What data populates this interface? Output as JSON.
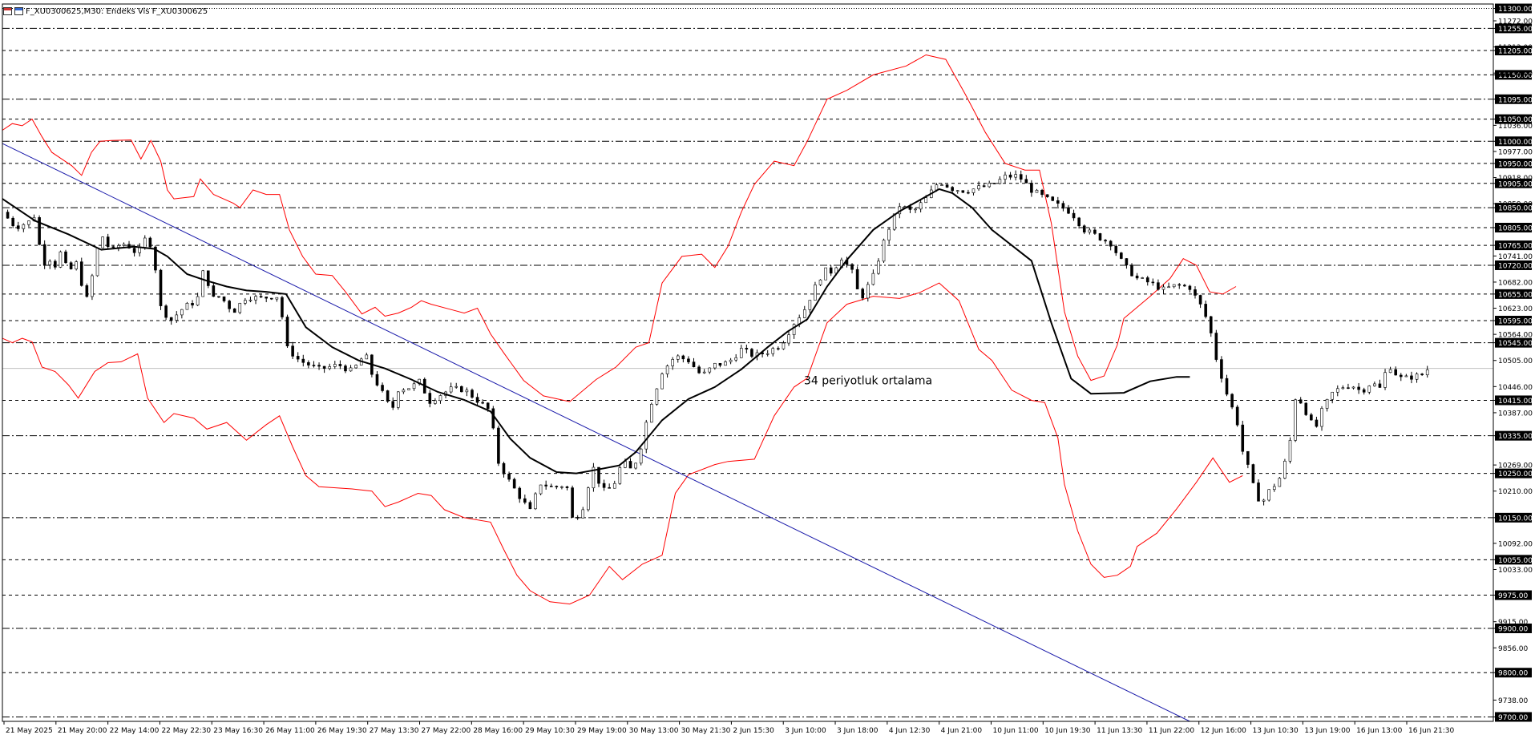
{
  "window": {
    "title": "F_XU0300625,M30: Endeks Vis F_XU0300625"
  },
  "colors": {
    "band": "#ff0000",
    "trendline": "#1a1aaa",
    "sma": "#000000",
    "candle": "#000000",
    "grid": "#000000",
    "price_tag_bg": "#000000",
    "price_tag_text": "#ffffff"
  },
  "chart_data": {
    "type": "candlestick",
    "timeframe": "M30",
    "y_range": [
      9690,
      11310
    ],
    "x_tick_labels": [
      "21 May 2025",
      "21 May 20:00",
      "22 May 14:00",
      "22 May 22:30",
      "23 May 16:30",
      "26 May 11:00",
      "26 May 19:30",
      "27 May 13:30",
      "27 May 22:00",
      "28 May 16:00",
      "29 May 10:30",
      "29 May 19:00",
      "30 May 13:00",
      "30 May 21:30",
      "2 Jun 15:30",
      "3 Jun 10:00",
      "3 Jun 18:00",
      "4 Jun 12:30",
      "4 Jun 21:00",
      "10 Jun 11:00",
      "10 Jun 19:30",
      "11 Jun 13:30",
      "11 Jun 22:00",
      "12 Jun 16:00",
      "13 Jun 10:30",
      "13 Jun 19:00",
      "16 Jun 13:00",
      "16 Jun 21:30"
    ],
    "y_axis_labels": [
      11300,
      11272,
      11255,
      11213,
      11205,
      11150,
      11154,
      11095,
      11050,
      11036,
      11000,
      10977,
      10950,
      10918,
      10905,
      10859,
      10850,
      10805,
      10765,
      10741,
      10720,
      10682,
      10655,
      10623,
      10595,
      10564,
      10545,
      10505,
      10446,
      10415,
      10387,
      10335,
      10269,
      10250,
      10210,
      10150,
      10092,
      10055,
      10033,
      9975,
      9915,
      9900,
      9856,
      9800,
      9738,
      9700
    ],
    "price_levels": [
      {
        "value": 11300,
        "style": "dotted"
      },
      {
        "value": 11255,
        "style": "dashdot"
      },
      {
        "value": 11205,
        "style": "dashed"
      },
      {
        "value": 11150,
        "style": "dashed"
      },
      {
        "value": 11095,
        "style": "dashdot"
      },
      {
        "value": 11050,
        "style": "dashed"
      },
      {
        "value": 11000,
        "style": "dashdot"
      },
      {
        "value": 10950,
        "style": "dashed"
      },
      {
        "value": 10905,
        "style": "dashed"
      },
      {
        "value": 10850,
        "style": "dashdot"
      },
      {
        "value": 10805,
        "style": "dashed"
      },
      {
        "value": 10765,
        "style": "dashed"
      },
      {
        "value": 10720,
        "style": "dashdot"
      },
      {
        "value": 10655,
        "style": "dashed"
      },
      {
        "value": 10595,
        "style": "dashed"
      },
      {
        "value": 10545,
        "style": "dashdot"
      },
      {
        "value": 10415,
        "style": "dashed"
      },
      {
        "value": 10335,
        "style": "dashdot"
      },
      {
        "value": 10250,
        "style": "dashed"
      },
      {
        "value": 10150,
        "style": "dashdot"
      },
      {
        "value": 10055,
        "style": "dashed"
      },
      {
        "value": 9975,
        "style": "dashed"
      },
      {
        "value": 9900,
        "style": "dashdot"
      },
      {
        "value": 9800,
        "style": "dashed"
      },
      {
        "value": 9700,
        "style": "dashdot"
      }
    ],
    "current_price": 10487,
    "annotation": {
      "text": "34 periyotluk ortalama",
      "bar": 1215,
      "price": 10451
    },
    "trendline": {
      "start": {
        "bar": 0,
        "price": 10995
      },
      "end": {
        "bar": 1800,
        "price": 9690
      }
    },
    "sma_path": [
      [
        0,
        10870
      ],
      [
        50,
        10820
      ],
      [
        100,
        10790
      ],
      [
        150,
        10755
      ],
      [
        200,
        10762
      ],
      [
        230,
        10757
      ],
      [
        250,
        10740
      ],
      [
        280,
        10700
      ],
      [
        310,
        10685
      ],
      [
        340,
        10672
      ],
      [
        370,
        10663
      ],
      [
        400,
        10660
      ],
      [
        430,
        10655
      ],
      [
        460,
        10580
      ],
      [
        500,
        10535
      ],
      [
        540,
        10505
      ],
      [
        580,
        10487
      ],
      [
        620,
        10462
      ],
      [
        660,
        10434
      ],
      [
        700,
        10416
      ],
      [
        740,
        10390
      ],
      [
        770,
        10328
      ],
      [
        800,
        10285
      ],
      [
        840,
        10253
      ],
      [
        870,
        10250
      ],
      [
        900,
        10258
      ],
      [
        935,
        10268
      ],
      [
        960,
        10298
      ],
      [
        1000,
        10370
      ],
      [
        1040,
        10418
      ],
      [
        1080,
        10445
      ],
      [
        1120,
        10485
      ],
      [
        1160,
        10535
      ],
      [
        1190,
        10570
      ],
      [
        1220,
        10598
      ],
      [
        1250,
        10672
      ],
      [
        1280,
        10732
      ],
      [
        1320,
        10800
      ],
      [
        1360,
        10842
      ],
      [
        1400,
        10875
      ],
      [
        1420,
        10892
      ],
      [
        1440,
        10883
      ],
      [
        1470,
        10850
      ],
      [
        1500,
        10800
      ],
      [
        1530,
        10765
      ],
      [
        1560,
        10730
      ],
      [
        1590,
        10590
      ],
      [
        1620,
        10464
      ],
      [
        1650,
        10430
      ],
      [
        1700,
        10432
      ],
      [
        1740,
        10458
      ],
      [
        1780,
        10468
      ],
      [
        1800,
        10468
      ]
    ],
    "upper_band_path": [
      [
        0,
        11025
      ],
      [
        15,
        11040
      ],
      [
        30,
        11035
      ],
      [
        45,
        11050
      ],
      [
        60,
        11010
      ],
      [
        75,
        10975
      ],
      [
        90,
        10960
      ],
      [
        105,
        10945
      ],
      [
        120,
        10923
      ],
      [
        135,
        10975
      ],
      [
        148,
        11000
      ],
      [
        165,
        11002
      ],
      [
        195,
        11003
      ],
      [
        210,
        10960
      ],
      [
        225,
        11002
      ],
      [
        240,
        10955
      ],
      [
        250,
        10890
      ],
      [
        260,
        10870
      ],
      [
        290,
        10875
      ],
      [
        300,
        10915
      ],
      [
        320,
        10880
      ],
      [
        350,
        10860
      ],
      [
        360,
        10850
      ],
      [
        380,
        10890
      ],
      [
        400,
        10880
      ],
      [
        420,
        10880
      ],
      [
        435,
        10800
      ],
      [
        455,
        10740
      ],
      [
        475,
        10700
      ],
      [
        500,
        10697
      ],
      [
        520,
        10660
      ],
      [
        545,
        10610
      ],
      [
        565,
        10625
      ],
      [
        580,
        10605
      ],
      [
        600,
        10612
      ],
      [
        620,
        10625
      ],
      [
        635,
        10640
      ],
      [
        650,
        10632
      ],
      [
        680,
        10620
      ],
      [
        700,
        10612
      ],
      [
        720,
        10623
      ],
      [
        740,
        10565
      ],
      [
        760,
        10522
      ],
      [
        790,
        10460
      ],
      [
        820,
        10425
      ],
      [
        860,
        10412
      ],
      [
        900,
        10462
      ],
      [
        930,
        10490
      ],
      [
        960,
        10535
      ],
      [
        980,
        10545
      ],
      [
        1000,
        10680
      ],
      [
        1030,
        10740
      ],
      [
        1060,
        10745
      ],
      [
        1080,
        10715
      ],
      [
        1100,
        10763
      ],
      [
        1120,
        10840
      ],
      [
        1140,
        10903
      ],
      [
        1170,
        10955
      ],
      [
        1200,
        10945
      ],
      [
        1220,
        11000
      ],
      [
        1250,
        11095
      ],
      [
        1280,
        11115
      ],
      [
        1320,
        11150
      ],
      [
        1370,
        11170
      ],
      [
        1400,
        11195
      ],
      [
        1430,
        11185
      ],
      [
        1460,
        11105
      ],
      [
        1490,
        11020
      ],
      [
        1520,
        10950
      ],
      [
        1550,
        10935
      ],
      [
        1572,
        10935
      ],
      [
        1590,
        10815
      ],
      [
        1610,
        10615
      ],
      [
        1630,
        10515
      ],
      [
        1650,
        10460
      ],
      [
        1670,
        10470
      ],
      [
        1690,
        10540
      ],
      [
        1700,
        10600
      ],
      [
        1740,
        10650
      ],
      [
        1770,
        10690
      ],
      [
        1790,
        10735
      ],
      [
        1810,
        10720
      ],
      [
        1830,
        10660
      ],
      [
        1850,
        10655
      ],
      [
        1870,
        10672
      ]
    ],
    "lower_band_path": [
      [
        0,
        10555
      ],
      [
        15,
        10545
      ],
      [
        30,
        10555
      ],
      [
        45,
        10547
      ],
      [
        60,
        10490
      ],
      [
        80,
        10480
      ],
      [
        100,
        10450
      ],
      [
        115,
        10420
      ],
      [
        140,
        10480
      ],
      [
        160,
        10500
      ],
      [
        180,
        10502
      ],
      [
        205,
        10520
      ],
      [
        220,
        10420
      ],
      [
        245,
        10365
      ],
      [
        260,
        10385
      ],
      [
        290,
        10375
      ],
      [
        310,
        10350
      ],
      [
        340,
        10365
      ],
      [
        370,
        10325
      ],
      [
        400,
        10360
      ],
      [
        420,
        10380
      ],
      [
        440,
        10310
      ],
      [
        460,
        10245
      ],
      [
        480,
        10220
      ],
      [
        530,
        10215
      ],
      [
        560,
        10210
      ],
      [
        580,
        10175
      ],
      [
        600,
        10185
      ],
      [
        630,
        10205
      ],
      [
        650,
        10200
      ],
      [
        670,
        10168
      ],
      [
        700,
        10150
      ],
      [
        740,
        10140
      ],
      [
        760,
        10078
      ],
      [
        780,
        10020
      ],
      [
        800,
        9985
      ],
      [
        830,
        9960
      ],
      [
        860,
        9955
      ],
      [
        890,
        9975
      ],
      [
        920,
        10040
      ],
      [
        940,
        10010
      ],
      [
        970,
        10045
      ],
      [
        1000,
        10065
      ],
      [
        1020,
        10205
      ],
      [
        1040,
        10247
      ],
      [
        1080,
        10270
      ],
      [
        1100,
        10277
      ],
      [
        1140,
        10282
      ],
      [
        1170,
        10380
      ],
      [
        1200,
        10445
      ],
      [
        1220,
        10465
      ],
      [
        1250,
        10590
      ],
      [
        1280,
        10632
      ],
      [
        1320,
        10650
      ],
      [
        1360,
        10645
      ],
      [
        1390,
        10658
      ],
      [
        1420,
        10680
      ],
      [
        1450,
        10640
      ],
      [
        1480,
        10530
      ],
      [
        1500,
        10505
      ],
      [
        1530,
        10438
      ],
      [
        1560,
        10415
      ],
      [
        1580,
        10410
      ],
      [
        1600,
        10330
      ],
      [
        1610,
        10225
      ],
      [
        1630,
        10120
      ],
      [
        1650,
        10045
      ],
      [
        1670,
        10015
      ],
      [
        1690,
        10020
      ],
      [
        1710,
        10040
      ],
      [
        1720,
        10085
      ],
      [
        1750,
        10115
      ],
      [
        1780,
        10170
      ],
      [
        1810,
        10230
      ],
      [
        1835,
        10285
      ],
      [
        1860,
        10230
      ],
      [
        1880,
        10245
      ]
    ],
    "price_path": [
      [
        0,
        10840
      ],
      [
        20,
        10806
      ],
      [
        40,
        10818
      ],
      [
        50,
        10835
      ],
      [
        60,
        10720
      ],
      [
        70,
        10738
      ],
      [
        80,
        10720
      ],
      [
        90,
        10755
      ],
      [
        100,
        10695
      ],
      [
        110,
        10735
      ],
      [
        120,
        10680
      ],
      [
        130,
        10635
      ],
      [
        140,
        10735
      ],
      [
        150,
        10790
      ],
      [
        165,
        10750
      ],
      [
        180,
        10770
      ],
      [
        190,
        10765
      ],
      [
        205,
        10745
      ],
      [
        220,
        10790
      ],
      [
        230,
        10735
      ],
      [
        240,
        10625
      ],
      [
        255,
        10595
      ],
      [
        275,
        10625
      ],
      [
        295,
        10640
      ],
      [
        305,
        10710
      ],
      [
        320,
        10645
      ],
      [
        330,
        10650
      ],
      [
        350,
        10615
      ],
      [
        370,
        10650
      ],
      [
        390,
        10645
      ],
      [
        410,
        10650
      ],
      [
        420,
        10650
      ],
      [
        430,
        10535
      ],
      [
        450,
        10505
      ],
      [
        480,
        10485
      ],
      [
        510,
        10495
      ],
      [
        530,
        10480
      ],
      [
        550,
        10520
      ],
      [
        560,
        10475
      ],
      [
        580,
        10420
      ],
      [
        590,
        10390
      ],
      [
        600,
        10440
      ],
      [
        620,
        10445
      ],
      [
        635,
        10460
      ],
      [
        645,
        10410
      ],
      [
        660,
        10425
      ],
      [
        680,
        10440
      ],
      [
        700,
        10440
      ],
      [
        720,
        10415
      ],
      [
        740,
        10390
      ],
      [
        750,
        10280
      ],
      [
        770,
        10228
      ],
      [
        790,
        10185
      ],
      [
        800,
        10165
      ],
      [
        815,
        10228
      ],
      [
        835,
        10218
      ],
      [
        855,
        10225
      ],
      [
        865,
        10140
      ],
      [
        880,
        10175
      ],
      [
        895,
        10265
      ],
      [
        910,
        10210
      ],
      [
        925,
        10218
      ],
      [
        940,
        10277
      ],
      [
        955,
        10255
      ],
      [
        970,
        10320
      ],
      [
        980,
        10395
      ],
      [
        1000,
        10480
      ],
      [
        1020,
        10515
      ],
      [
        1040,
        10505
      ],
      [
        1060,
        10470
      ],
      [
        1080,
        10495
      ],
      [
        1100,
        10500
      ],
      [
        1120,
        10530
      ],
      [
        1140,
        10515
      ],
      [
        1160,
        10525
      ],
      [
        1180,
        10540
      ],
      [
        1200,
        10590
      ],
      [
        1215,
        10618
      ],
      [
        1230,
        10665
      ],
      [
        1245,
        10708
      ],
      [
        1260,
        10705
      ],
      [
        1270,
        10742
      ],
      [
        1290,
        10700
      ],
      [
        1300,
        10640
      ],
      [
        1320,
        10695
      ],
      [
        1340,
        10792
      ],
      [
        1360,
        10855
      ],
      [
        1380,
        10840
      ],
      [
        1400,
        10870
      ],
      [
        1420,
        10910
      ],
      [
        1440,
        10893
      ],
      [
        1460,
        10888
      ],
      [
        1480,
        10895
      ],
      [
        1500,
        10901
      ],
      [
        1520,
        10920
      ],
      [
        1540,
        10922
      ],
      [
        1560,
        10890
      ],
      [
        1580,
        10872
      ],
      [
        1600,
        10855
      ],
      [
        1620,
        10840
      ],
      [
        1640,
        10800
      ],
      [
        1660,
        10785
      ],
      [
        1680,
        10770
      ],
      [
        1700,
        10720
      ],
      [
        1720,
        10690
      ],
      [
        1740,
        10680
      ],
      [
        1760,
        10665
      ],
      [
        1780,
        10675
      ],
      [
        1800,
        10670
      ],
      [
        1810,
        10644
      ],
      [
        1820,
        10620
      ],
      [
        1830,
        10580
      ],
      [
        1840,
        10510
      ],
      [
        1850,
        10460
      ],
      [
        1860,
        10410
      ],
      [
        1870,
        10380
      ],
      [
        1880,
        10300
      ],
      [
        1890,
        10255
      ],
      [
        1900,
        10200
      ],
      [
        1910,
        10185
      ],
      [
        1920,
        10210
      ],
      [
        1935,
        10235
      ],
      [
        1950,
        10300
      ],
      [
        1960,
        10420
      ],
      [
        1970,
        10410
      ],
      [
        1980,
        10375
      ],
      [
        1990,
        10348
      ],
      [
        2000,
        10390
      ],
      [
        2015,
        10430
      ],
      [
        2030,
        10445
      ],
      [
        2045,
        10450
      ],
      [
        2060,
        10435
      ],
      [
        2075,
        10455
      ],
      [
        2090,
        10440
      ],
      [
        2100,
        10500
      ],
      [
        2110,
        10478
      ],
      [
        2120,
        10465
      ],
      [
        2130,
        10465
      ],
      [
        2140,
        10470
      ],
      [
        2150,
        10470
      ],
      [
        2160,
        10485
      ]
    ]
  }
}
